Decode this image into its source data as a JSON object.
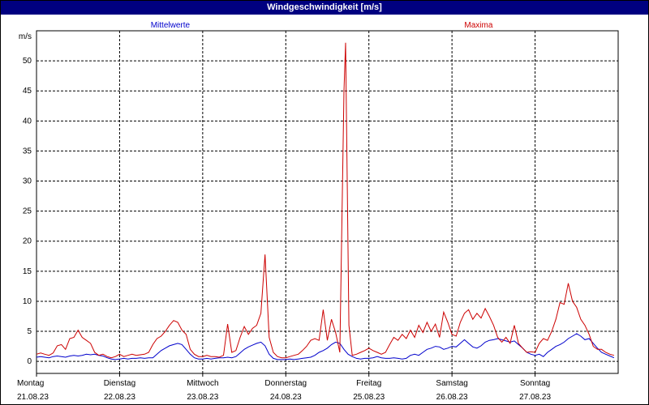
{
  "window": {
    "title": "Windgeschwindigkeit [m/s]"
  },
  "colors": {
    "mean": "#0000cc",
    "max": "#cc0000",
    "grid": "#000000",
    "titlebar": "#000080"
  },
  "chart_data": {
    "type": "line",
    "title": "Windgeschwindigkeit [m/s]",
    "ylabel": "m/s",
    "ylim": [
      -2,
      55
    ],
    "yticks": [
      0,
      5,
      10,
      15,
      20,
      25,
      30,
      35,
      40,
      45,
      50
    ],
    "grid": true,
    "x_ticks": [
      {
        "day": "Montag",
        "date": "21.08.23"
      },
      {
        "day": "Dienstag",
        "date": "22.08.23"
      },
      {
        "day": "Mittwoch",
        "date": "23.08.23"
      },
      {
        "day": "Donnerstag",
        "date": "24.08.23"
      },
      {
        "day": "Freitag",
        "date": "25.08.23"
      },
      {
        "day": "Samstag",
        "date": "26.08.23"
      },
      {
        "day": "Sonntag",
        "date": "27.08.23"
      }
    ],
    "legend_placement": "top",
    "series": [
      {
        "name": "Mittelwerte",
        "color": "#0000cc",
        "points": [
          [
            0.0,
            0.7
          ],
          [
            0.05,
            0.8
          ],
          [
            0.1,
            0.7
          ],
          [
            0.15,
            0.6
          ],
          [
            0.2,
            0.8
          ],
          [
            0.25,
            0.9
          ],
          [
            0.3,
            0.8
          ],
          [
            0.35,
            0.7
          ],
          [
            0.4,
            0.9
          ],
          [
            0.45,
            1.0
          ],
          [
            0.5,
            0.9
          ],
          [
            0.55,
            1.0
          ],
          [
            0.6,
            1.2
          ],
          [
            0.65,
            1.1
          ],
          [
            0.7,
            1.2
          ],
          [
            0.75,
            1.0
          ],
          [
            0.8,
            0.9
          ],
          [
            0.85,
            0.6
          ],
          [
            0.9,
            0.4
          ],
          [
            0.95,
            0.3
          ],
          [
            1.0,
            0.4
          ],
          [
            1.05,
            0.5
          ],
          [
            1.1,
            0.4
          ],
          [
            1.15,
            0.5
          ],
          [
            1.2,
            0.5
          ],
          [
            1.25,
            0.6
          ],
          [
            1.3,
            0.5
          ],
          [
            1.35,
            0.6
          ],
          [
            1.4,
            0.6
          ],
          [
            1.45,
            1.2
          ],
          [
            1.5,
            1.8
          ],
          [
            1.55,
            2.2
          ],
          [
            1.6,
            2.6
          ],
          [
            1.65,
            2.8
          ],
          [
            1.7,
            3.0
          ],
          [
            1.75,
            2.8
          ],
          [
            1.8,
            2.0
          ],
          [
            1.85,
            1.2
          ],
          [
            1.9,
            0.6
          ],
          [
            1.95,
            0.4
          ],
          [
            2.0,
            0.4
          ],
          [
            2.05,
            0.5
          ],
          [
            2.1,
            0.4
          ],
          [
            2.15,
            0.5
          ],
          [
            2.2,
            0.6
          ],
          [
            2.25,
            0.6
          ],
          [
            2.3,
            0.7
          ],
          [
            2.35,
            0.6
          ],
          [
            2.4,
            0.8
          ],
          [
            2.45,
            1.4
          ],
          [
            2.5,
            2.0
          ],
          [
            2.55,
            2.4
          ],
          [
            2.6,
            2.7
          ],
          [
            2.65,
            3.0
          ],
          [
            2.7,
            3.2
          ],
          [
            2.75,
            2.6
          ],
          [
            2.8,
            1.2
          ],
          [
            2.85,
            0.5
          ],
          [
            2.9,
            0.3
          ],
          [
            2.95,
            0.3
          ],
          [
            3.0,
            0.3
          ],
          [
            3.05,
            0.4
          ],
          [
            3.1,
            0.3
          ],
          [
            3.15,
            0.4
          ],
          [
            3.2,
            0.5
          ],
          [
            3.25,
            0.6
          ],
          [
            3.3,
            0.7
          ],
          [
            3.35,
            1.0
          ],
          [
            3.4,
            1.5
          ],
          [
            3.45,
            1.8
          ],
          [
            3.5,
            2.2
          ],
          [
            3.55,
            2.8
          ],
          [
            3.6,
            3.2
          ],
          [
            3.65,
            3.0
          ],
          [
            3.7,
            2.0
          ],
          [
            3.75,
            1.2
          ],
          [
            3.8,
            0.8
          ],
          [
            3.85,
            0.5
          ],
          [
            3.9,
            0.4
          ],
          [
            3.95,
            0.5
          ],
          [
            4.0,
            0.5
          ],
          [
            4.05,
            0.6
          ],
          [
            4.1,
            0.8
          ],
          [
            4.15,
            0.6
          ],
          [
            4.2,
            0.5
          ],
          [
            4.25,
            0.5
          ],
          [
            4.3,
            0.6
          ],
          [
            4.35,
            0.5
          ],
          [
            4.4,
            0.4
          ],
          [
            4.45,
            0.5
          ],
          [
            4.5,
            1.0
          ],
          [
            4.55,
            1.2
          ],
          [
            4.6,
            1.0
          ],
          [
            4.65,
            1.5
          ],
          [
            4.7,
            2.0
          ],
          [
            4.75,
            2.2
          ],
          [
            4.8,
            2.5
          ],
          [
            4.85,
            2.4
          ],
          [
            4.9,
            2.0
          ],
          [
            4.95,
            2.2
          ],
          [
            5.0,
            2.5
          ],
          [
            5.05,
            2.4
          ],
          [
            5.1,
            3.0
          ],
          [
            5.15,
            3.6
          ],
          [
            5.2,
            3.0
          ],
          [
            5.25,
            2.4
          ],
          [
            5.3,
            2.2
          ],
          [
            5.35,
            2.6
          ],
          [
            5.4,
            3.2
          ],
          [
            5.45,
            3.5
          ],
          [
            5.5,
            3.6
          ],
          [
            5.55,
            3.8
          ],
          [
            5.6,
            3.6
          ],
          [
            5.65,
            3.4
          ],
          [
            5.7,
            3.2
          ],
          [
            5.75,
            3.4
          ],
          [
            5.8,
            2.8
          ],
          [
            5.85,
            2.2
          ],
          [
            5.9,
            1.5
          ],
          [
            5.95,
            1.2
          ],
          [
            6.0,
            1.0
          ],
          [
            6.05,
            1.2
          ],
          [
            6.1,
            0.8
          ],
          [
            6.15,
            1.5
          ],
          [
            6.2,
            2.0
          ],
          [
            6.25,
            2.5
          ],
          [
            6.3,
            2.8
          ],
          [
            6.35,
            3.2
          ],
          [
            6.4,
            3.8
          ],
          [
            6.45,
            4.2
          ],
          [
            6.5,
            4.6
          ],
          [
            6.55,
            4.2
          ],
          [
            6.6,
            3.6
          ],
          [
            6.65,
            3.8
          ],
          [
            6.7,
            3.0
          ],
          [
            6.75,
            2.2
          ],
          [
            6.8,
            1.5
          ],
          [
            6.85,
            1.2
          ],
          [
            6.9,
            0.9
          ],
          [
            6.95,
            0.6
          ]
        ]
      },
      {
        "name": "Maxima",
        "color": "#cc0000",
        "points": [
          [
            0.0,
            1.2
          ],
          [
            0.05,
            1.4
          ],
          [
            0.1,
            1.2
          ],
          [
            0.15,
            1.0
          ],
          [
            0.2,
            1.4
          ],
          [
            0.25,
            2.6
          ],
          [
            0.3,
            2.8
          ],
          [
            0.35,
            2.0
          ],
          [
            0.4,
            3.8
          ],
          [
            0.45,
            4.0
          ],
          [
            0.5,
            5.2
          ],
          [
            0.55,
            4.0
          ],
          [
            0.6,
            3.5
          ],
          [
            0.65,
            3.0
          ],
          [
            0.7,
            1.5
          ],
          [
            0.75,
            1.0
          ],
          [
            0.8,
            1.2
          ],
          [
            0.85,
            0.8
          ],
          [
            0.9,
            0.6
          ],
          [
            0.95,
            0.8
          ],
          [
            1.0,
            1.2
          ],
          [
            1.05,
            0.8
          ],
          [
            1.1,
            1.0
          ],
          [
            1.15,
            1.2
          ],
          [
            1.2,
            1.0
          ],
          [
            1.25,
            1.1
          ],
          [
            1.3,
            1.2
          ],
          [
            1.35,
            1.5
          ],
          [
            1.4,
            2.8
          ],
          [
            1.45,
            3.8
          ],
          [
            1.5,
            4.2
          ],
          [
            1.55,
            5.0
          ],
          [
            1.6,
            6.0
          ],
          [
            1.65,
            6.8
          ],
          [
            1.7,
            6.5
          ],
          [
            1.75,
            5.2
          ],
          [
            1.8,
            4.5
          ],
          [
            1.85,
            2.0
          ],
          [
            1.9,
            1.2
          ],
          [
            1.95,
            0.8
          ],
          [
            2.0,
            0.8
          ],
          [
            2.05,
            1.0
          ],
          [
            2.1,
            0.8
          ],
          [
            2.15,
            0.8
          ],
          [
            2.2,
            0.7
          ],
          [
            2.25,
            1.0
          ],
          [
            2.3,
            6.2
          ],
          [
            2.35,
            1.5
          ],
          [
            2.4,
            1.8
          ],
          [
            2.45,
            4.0
          ],
          [
            2.5,
            5.8
          ],
          [
            2.55,
            4.5
          ],
          [
            2.6,
            5.5
          ],
          [
            2.65,
            6.0
          ],
          [
            2.7,
            8.0
          ],
          [
            2.75,
            17.8
          ],
          [
            2.8,
            4.0
          ],
          [
            2.85,
            1.5
          ],
          [
            2.9,
            0.8
          ],
          [
            2.95,
            0.6
          ],
          [
            3.0,
            0.6
          ],
          [
            3.05,
            0.8
          ],
          [
            3.1,
            1.0
          ],
          [
            3.15,
            1.2
          ],
          [
            3.2,
            1.8
          ],
          [
            3.25,
            2.5
          ],
          [
            3.3,
            3.5
          ],
          [
            3.35,
            3.8
          ],
          [
            3.4,
            3.5
          ],
          [
            3.45,
            8.6
          ],
          [
            3.5,
            3.5
          ],
          [
            3.55,
            7.0
          ],
          [
            3.6,
            4.8
          ],
          [
            3.65,
            1.5
          ],
          [
            3.7,
            45.0
          ],
          [
            3.72,
            53.0
          ],
          [
            3.76,
            6.0
          ],
          [
            3.8,
            1.0
          ],
          [
            3.85,
            1.2
          ],
          [
            3.9,
            1.5
          ],
          [
            3.95,
            1.8
          ],
          [
            4.0,
            2.2
          ],
          [
            4.05,
            1.8
          ],
          [
            4.1,
            1.5
          ],
          [
            4.15,
            1.2
          ],
          [
            4.2,
            1.5
          ],
          [
            4.25,
            2.8
          ],
          [
            4.3,
            4.0
          ],
          [
            4.35,
            3.5
          ],
          [
            4.4,
            4.5
          ],
          [
            4.45,
            3.8
          ],
          [
            4.5,
            5.2
          ],
          [
            4.55,
            4.0
          ],
          [
            4.6,
            6.0
          ],
          [
            4.65,
            4.8
          ],
          [
            4.7,
            6.5
          ],
          [
            4.75,
            5.0
          ],
          [
            4.8,
            6.2
          ],
          [
            4.85,
            4.0
          ],
          [
            4.9,
            8.2
          ],
          [
            4.95,
            6.5
          ],
          [
            5.0,
            4.5
          ],
          [
            5.05,
            4.2
          ],
          [
            5.1,
            6.5
          ],
          [
            5.15,
            8.0
          ],
          [
            5.2,
            8.6
          ],
          [
            5.25,
            7.0
          ],
          [
            5.3,
            8.0
          ],
          [
            5.35,
            7.2
          ],
          [
            5.4,
            8.8
          ],
          [
            5.45,
            7.5
          ],
          [
            5.5,
            6.0
          ],
          [
            5.55,
            4.0
          ],
          [
            5.6,
            3.2
          ],
          [
            5.65,
            4.0
          ],
          [
            5.7,
            3.0
          ],
          [
            5.75,
            6.0
          ],
          [
            5.8,
            3.0
          ],
          [
            5.85,
            2.2
          ],
          [
            5.9,
            1.5
          ],
          [
            5.95,
            1.6
          ],
          [
            6.0,
            1.5
          ],
          [
            6.05,
            3.0
          ],
          [
            6.1,
            3.8
          ],
          [
            6.15,
            3.5
          ],
          [
            6.2,
            5.0
          ],
          [
            6.25,
            7.0
          ],
          [
            6.3,
            9.8
          ],
          [
            6.35,
            9.5
          ],
          [
            6.4,
            13.0
          ],
          [
            6.45,
            10.0
          ],
          [
            6.5,
            9.0
          ],
          [
            6.55,
            7.0
          ],
          [
            6.6,
            6.0
          ],
          [
            6.65,
            4.5
          ],
          [
            6.7,
            2.5
          ],
          [
            6.75,
            2.0
          ],
          [
            6.8,
            2.0
          ],
          [
            6.85,
            1.5
          ],
          [
            6.9,
            1.2
          ],
          [
            6.95,
            1.0
          ]
        ]
      }
    ]
  }
}
